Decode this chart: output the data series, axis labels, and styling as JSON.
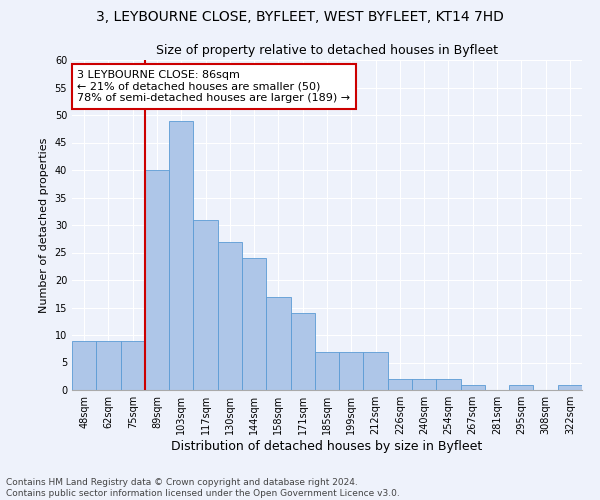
{
  "title1": "3, LEYBOURNE CLOSE, BYFLEET, WEST BYFLEET, KT14 7HD",
  "title2": "Size of property relative to detached houses in Byfleet",
  "xlabel": "Distribution of detached houses by size in Byfleet",
  "ylabel": "Number of detached properties",
  "categories": [
    "48sqm",
    "62sqm",
    "75sqm",
    "89sqm",
    "103sqm",
    "117sqm",
    "130sqm",
    "144sqm",
    "158sqm",
    "171sqm",
    "185sqm",
    "199sqm",
    "212sqm",
    "226sqm",
    "240sqm",
    "254sqm",
    "267sqm",
    "281sqm",
    "295sqm",
    "308sqm",
    "322sqm"
  ],
  "values": [
    9,
    9,
    9,
    40,
    49,
    31,
    27,
    24,
    17,
    14,
    7,
    7,
    7,
    2,
    2,
    2,
    1,
    0,
    1,
    0,
    1
  ],
  "bar_color": "#aec6e8",
  "bar_edge_color": "#5b9bd5",
  "property_line_idx": 3,
  "property_line_label": "3 LEYBOURNE CLOSE: 86sqm",
  "annotation_line1": "← 21% of detached houses are smaller (50)",
  "annotation_line2": "78% of semi-detached houses are larger (189) →",
  "annotation_box_color": "#ffffff",
  "annotation_box_edge": "#cc0000",
  "vline_color": "#cc0000",
  "ylim": [
    0,
    60
  ],
  "yticks": [
    0,
    5,
    10,
    15,
    20,
    25,
    30,
    35,
    40,
    45,
    50,
    55,
    60
  ],
  "footer1": "Contains HM Land Registry data © Crown copyright and database right 2024.",
  "footer2": "Contains public sector information licensed under the Open Government Licence v3.0.",
  "background_color": "#eef2fb",
  "title1_fontsize": 10,
  "title2_fontsize": 9,
  "ylabel_fontsize": 8,
  "xlabel_fontsize": 9,
  "tick_fontsize": 7,
  "footer_fontsize": 6.5,
  "annot_fontsize": 8
}
